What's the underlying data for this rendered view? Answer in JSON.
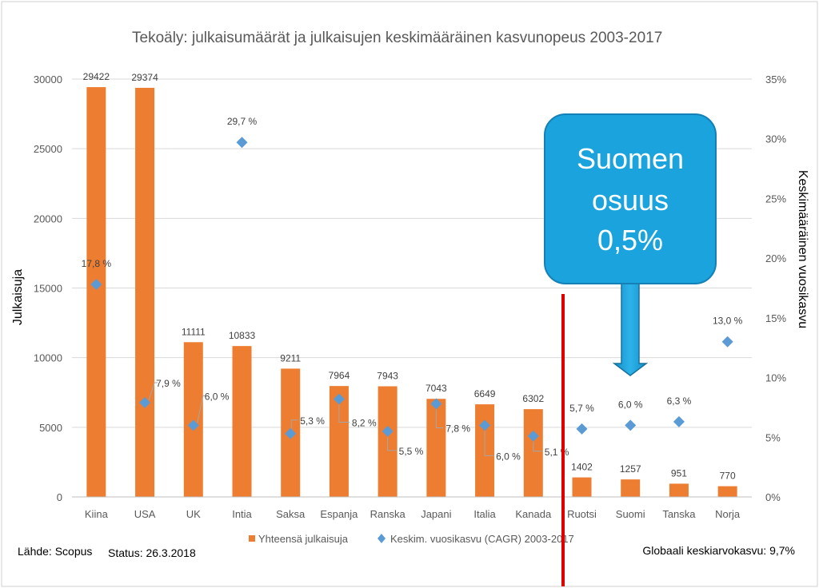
{
  "chart_data": {
    "type": "bar",
    "title": "Tekoäly: julkaisumäärät ja julkaisujen keskimääräinen kasvunopeus 2003-2017",
    "ylabel": "Julkaisuja",
    "y2label": "Keskimääräinen vuosikasvu",
    "ylim": [
      0,
      30000
    ],
    "y2lim": [
      0,
      35
    ],
    "yticks": [
      "0",
      "5000",
      "10000",
      "15000",
      "20000",
      "25000",
      "30000"
    ],
    "y2ticks": [
      "0%",
      "5%",
      "10%",
      "15%",
      "20%",
      "25%",
      "30%",
      "35%"
    ],
    "grid": true,
    "legend_position": "bottom",
    "categories": [
      "Kiina",
      "USA",
      "UK",
      "Intia",
      "Saksa",
      "Espanja",
      "Ranska",
      "Japani",
      "Italia",
      "Kanada",
      "Ruotsi",
      "Suomi",
      "Tanska",
      "Norja"
    ],
    "series": [
      {
        "name": "Yhteensä julkaisuja",
        "type": "bar",
        "axis": "left",
        "color": "#ED7D31",
        "values": [
          29422,
          29374,
          11111,
          10833,
          9211,
          7964,
          7943,
          7043,
          6649,
          6302,
          1402,
          1257,
          951,
          770
        ],
        "labels": [
          "29422",
          "29374",
          "11111",
          "10833",
          "9211",
          "7964",
          "7943",
          "7043",
          "6649",
          "6302",
          "1402",
          "1257",
          "951",
          "770"
        ]
      },
      {
        "name": "Keskim. vuosikasvu (CAGR) 2003-2017",
        "type": "scatter",
        "marker": "diamond",
        "axis": "right",
        "color": "#5B9BD5",
        "values": [
          17.8,
          7.9,
          6.0,
          29.7,
          5.3,
          8.2,
          5.5,
          7.8,
          6.0,
          5.1,
          5.7,
          6.0,
          6.3,
          13.0
        ],
        "labels": [
          "17,8 %",
          "7,9 %",
          "6,0 %",
          "29,7 %",
          "5,3 %",
          "8,2 %",
          "5,5 %",
          "7,8 %",
          "6,0 %",
          "5,1 %",
          "5,7 %",
          "6,0 %",
          "6,3 %",
          "13,0 %"
        ]
      }
    ]
  },
  "callout": {
    "line1": "Suomen",
    "line2": "osuus",
    "line3": "0,5%",
    "color": "#1AA3DC"
  },
  "footer": {
    "source": "Lähde: Scopus",
    "status": "Status: 26.3.2018",
    "global": "Globaali keskiarvokasvu: 9,7%"
  },
  "divider_color": "#E00000"
}
